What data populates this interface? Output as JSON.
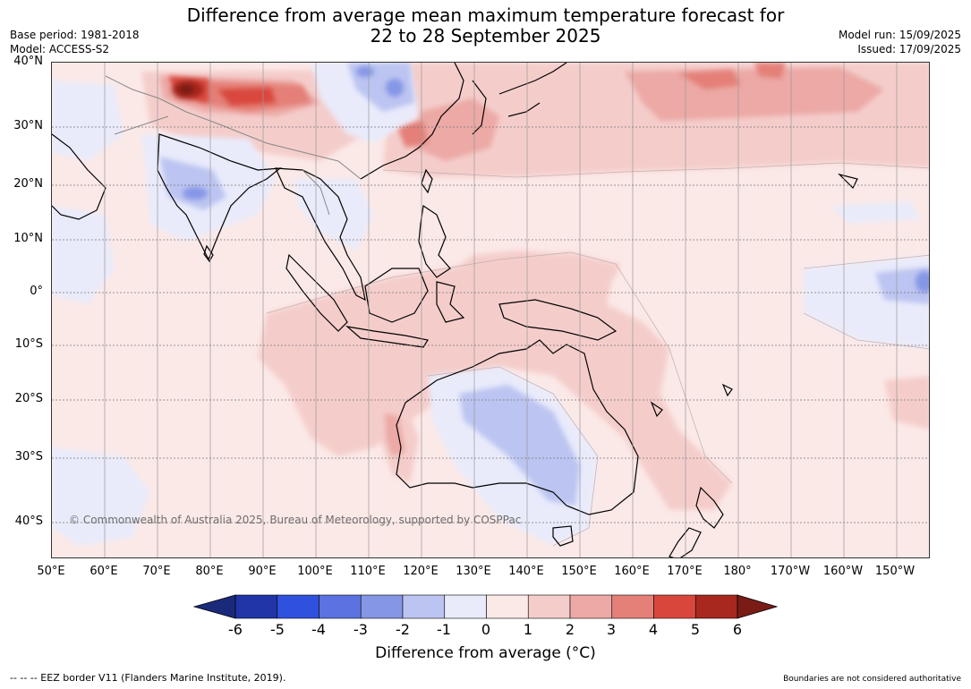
{
  "title": {
    "line1": "Difference from average mean maximum temperature forecast for",
    "line2": "22 to 28 September 2025"
  },
  "meta_left": {
    "base_period": "Base period: 1981-2018",
    "model": "Model: ACCESS-S2"
  },
  "meta_right": {
    "model_run": "Model run: 15/09/2025",
    "issued": "Issued: 17/09/2025"
  },
  "map": {
    "lat_labels": [
      "40°N",
      "30°N",
      "20°N",
      "10°N",
      "0°",
      "10°S",
      "20°S",
      "30°S",
      "40°S"
    ],
    "lon_labels": [
      "50°E",
      "60°E",
      "70°E",
      "80°E",
      "90°E",
      "100°E",
      "110°E",
      "120°E",
      "130°E",
      "140°E",
      "150°E",
      "160°E",
      "170°E",
      "180°",
      "170°W",
      "160°W",
      "150°W"
    ],
    "copyright": "© Commonwealth of Australia 2025, Bureau of Meteorology, supported by COSPPac"
  },
  "colorbar": {
    "ticks": [
      "-6",
      "-5",
      "-4",
      "-3",
      "-2",
      "-1",
      "0",
      "1",
      "2",
      "3",
      "4",
      "5",
      "6"
    ],
    "colors": [
      "#2135a8",
      "#3050de",
      "#5b72e0",
      "#8596e6",
      "#bcc4f1",
      "#e9ebfb",
      "#fbe9e7",
      "#f4cdcb",
      "#eca9a5",
      "#e48078",
      "#d9473c",
      "#a8281f"
    ],
    "under_color": "#1a2a7a",
    "over_color": "#7a1c16",
    "title": "Difference from average (°C)"
  },
  "footer": {
    "eez": "--  --  -- EEZ border V11 (Flanders Marine Institute, 2019).",
    "boundaries": "Boundaries are not considered authoritative"
  }
}
